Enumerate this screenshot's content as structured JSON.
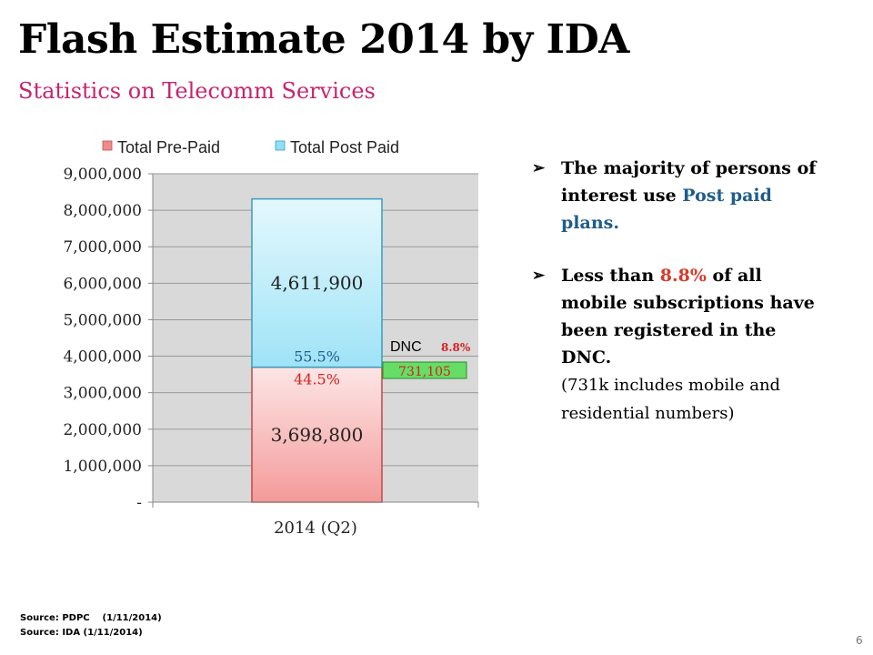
{
  "slide": {
    "title": "Flash Estimate 2014 by IDA",
    "subtitle": "Statistics on Telecomm Services",
    "page_number": "6"
  },
  "chart_data": {
    "type": "bar",
    "stacked": true,
    "categories": [
      "2014 (Q2)"
    ],
    "series": [
      {
        "name": "Total Pre-Paid",
        "values": [
          3698800
        ],
        "value_label": "3,698,800",
        "percent_label": "44.5%",
        "color": "#f4a6a6"
      },
      {
        "name": "Total Post Paid",
        "values": [
          4611900
        ],
        "value_label": "4,611,900",
        "percent_label": "55.5%",
        "color": "#a7e5f8"
      }
    ],
    "ylim": [
      0,
      9000000
    ],
    "yticks": [
      {
        "value": 0,
        "label": "-"
      },
      {
        "value": 1000000,
        "label": "1,000,000"
      },
      {
        "value": 2000000,
        "label": "2,000,000"
      },
      {
        "value": 3000000,
        "label": "3,000,000"
      },
      {
        "value": 4000000,
        "label": "4,000,000"
      },
      {
        "value": 5000000,
        "label": "5,000,000"
      },
      {
        "value": 6000000,
        "label": "6,000,000"
      },
      {
        "value": 7000000,
        "label": "7,000,000"
      },
      {
        "value": 8000000,
        "label": "8,000,000"
      },
      {
        "value": 9000000,
        "label": "9,000,000"
      }
    ],
    "grid": true,
    "legend_position": "top",
    "annotation": {
      "label": "DNC",
      "percent": "8.8%",
      "value": 731105,
      "value_label": "731,105"
    }
  },
  "bullets": [
    {
      "parts": [
        "The majority of persons of interest use ",
        "Post paid plans."
      ]
    },
    {
      "parts": [
        "Less than ",
        "8.8%",
        " of all mobile subscriptions have been registered in the DNC.",
        "(731k includes mobile and residential numbers)"
      ]
    }
  ],
  "sources": [
    "Source: PDPC    (1/11/2014)",
    "Source: IDA (1/11/2014)"
  ]
}
